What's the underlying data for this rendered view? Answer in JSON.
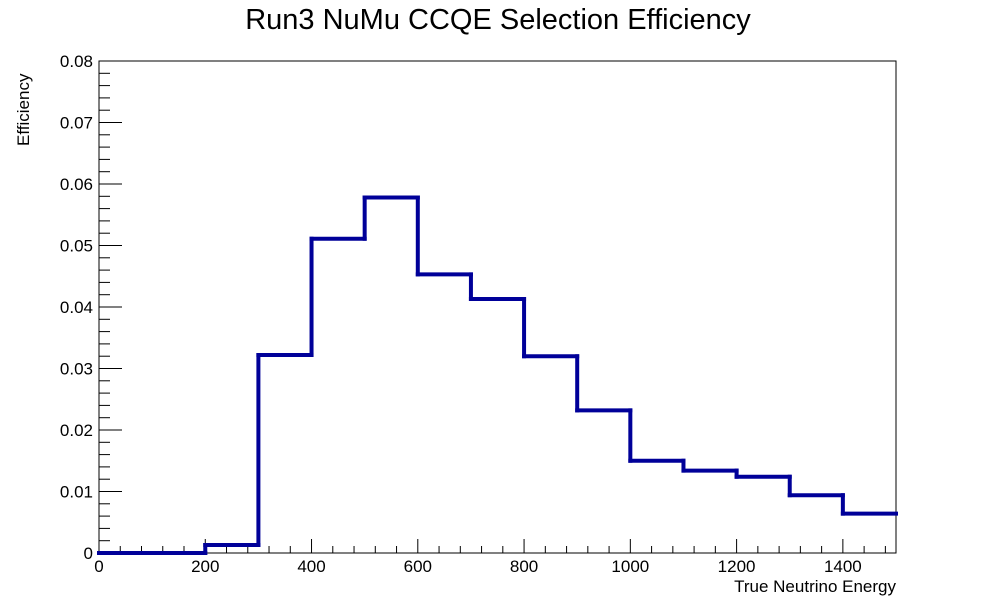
{
  "chart_data": {
    "type": "bar",
    "style": "step-histogram",
    "title": "Run3 NuMu CCQE Selection Efficiency",
    "xlabel": "True Neutrino Energy",
    "ylabel": "Efficiency",
    "xlim": [
      0,
      1500
    ],
    "ylim": [
      0,
      0.08
    ],
    "x_ticks": [
      0,
      200,
      400,
      600,
      800,
      1000,
      1200,
      1400
    ],
    "x_tick_labels": [
      "0",
      "200",
      "400",
      "600",
      "800",
      "1000",
      "1200",
      "1400"
    ],
    "y_ticks": [
      0,
      0.01,
      0.02,
      0.03,
      0.04,
      0.05,
      0.06,
      0.07,
      0.08
    ],
    "y_tick_labels": [
      "0",
      "0.01",
      "0.02",
      "0.03",
      "0.04",
      "0.05",
      "0.06",
      "0.07",
      "0.08"
    ],
    "bin_edges": [
      0,
      100,
      200,
      300,
      400,
      500,
      600,
      700,
      800,
      900,
      1000,
      1100,
      1200,
      1300,
      1400,
      1500
    ],
    "values": [
      0.0,
      0.0,
      0.0013,
      0.0322,
      0.0511,
      0.0578,
      0.0453,
      0.0413,
      0.032,
      0.0232,
      0.015,
      0.0134,
      0.0124,
      0.0094,
      0.0064
    ],
    "line_color": "#000099",
    "grid": false,
    "legend": "none"
  }
}
